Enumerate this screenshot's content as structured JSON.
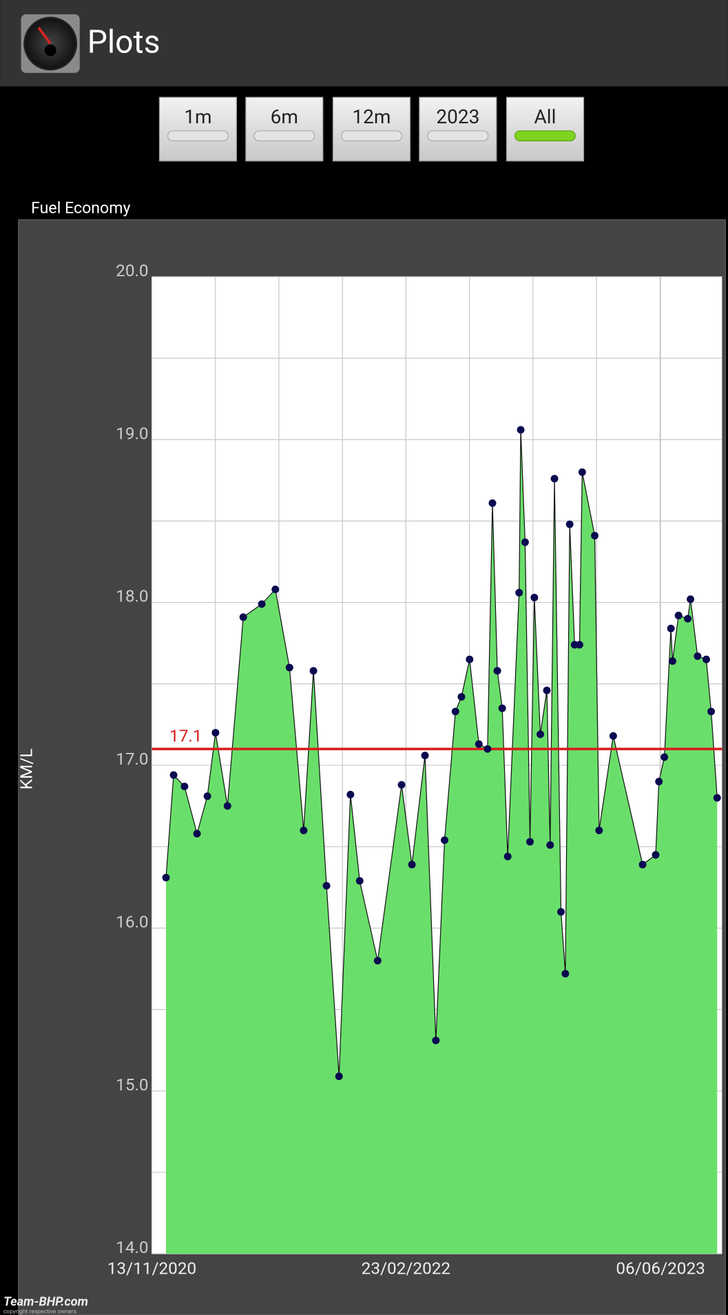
{
  "header": {
    "title": "Plots"
  },
  "buttons": [
    {
      "label": "1m",
      "active": false
    },
    {
      "label": "6m",
      "active": false
    },
    {
      "label": "12m",
      "active": false
    },
    {
      "label": "2023",
      "active": false
    },
    {
      "label": "All",
      "active": true
    }
  ],
  "chart_data": {
    "type": "area",
    "title": "Fuel Economy",
    "ylabel": "KM/L",
    "x": [
      26,
      40,
      60,
      83,
      102,
      117,
      139,
      168,
      202,
      227,
      253,
      279,
      297,
      321,
      344,
      365,
      382,
      415,
      459,
      478,
      502,
      522,
      538,
      558,
      569,
      584,
      601,
      617,
      626,
      635,
      644,
      654,
      675,
      678,
      686,
      695,
      703,
      714,
      726,
      732,
      740,
      752,
      760,
      768,
      777,
      786,
      791,
      814,
      822,
      848,
      902,
      926,
      932,
      942,
      954,
      957,
      968,
      985,
      990,
      1003,
      1019,
      1028,
      1039
    ],
    "values": [
      16.31,
      16.94,
      16.87,
      16.58,
      16.81,
      17.2,
      16.75,
      17.91,
      17.99,
      18.08,
      17.6,
      16.6,
      17.58,
      16.26,
      15.09,
      16.82,
      16.29,
      15.8,
      16.88,
      16.39,
      17.06,
      15.31,
      16.54,
      17.33,
      17.42,
      17.65,
      17.13,
      17.1,
      18.61,
      17.58,
      17.35,
      16.44,
      18.06,
      19.06,
      18.37,
      16.53,
      18.03,
      17.19,
      17.46,
      16.51,
      18.76,
      16.1,
      15.72,
      18.48,
      17.74,
      17.74,
      18.8,
      18.41,
      16.6,
      17.18,
      16.39,
      16.45,
      16.9,
      17.05,
      17.84,
      17.64,
      17.92,
      17.9,
      18.02,
      17.67,
      17.65,
      17.33,
      16.8
    ],
    "color": "#6ade6a",
    "marker_color": "#0a0a50",
    "xlim": [
      0,
      1048
    ],
    "xticks": [
      {
        "value": 0,
        "label": "13/11/2020"
      },
      {
        "value": 467,
        "label": "23/02/2022"
      },
      {
        "value": 935,
        "label": "06/06/2023"
      }
    ],
    "ylim": [
      14,
      20
    ],
    "yticks": [
      {
        "value": 14,
        "label": "14.0"
      },
      {
        "value": 15,
        "label": "15.0"
      },
      {
        "value": 16,
        "label": "16.0"
      },
      {
        "value": 17,
        "label": "17.0"
      },
      {
        "value": 18,
        "label": "18.0"
      },
      {
        "value": 19,
        "label": "19.0"
      },
      {
        "value": 20,
        "label": "20.0"
      }
    ],
    "grid": true,
    "reference_line": {
      "value": 17.1,
      "color": "#d91c1c"
    }
  },
  "watermark": {
    "brand": "Team-BHP.com",
    "note": "copyright respective owners"
  }
}
